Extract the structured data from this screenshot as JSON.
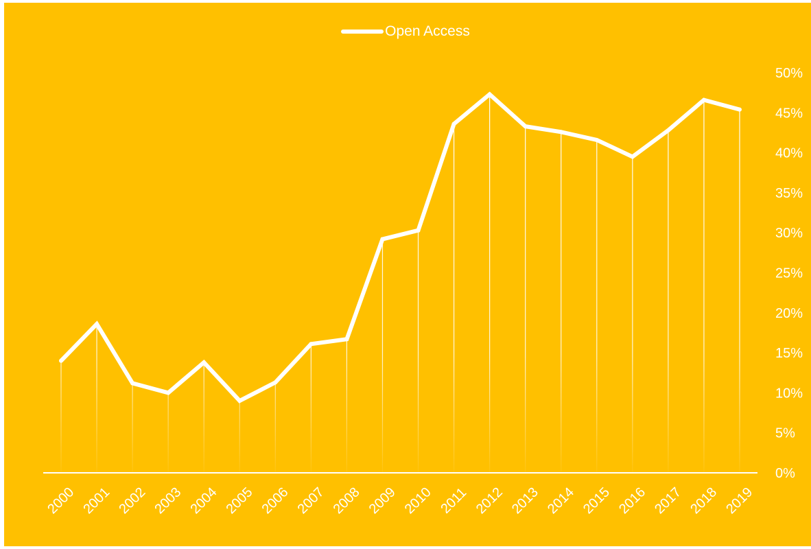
{
  "chart_data": {
    "type": "line",
    "title": "",
    "xlabel": "",
    "ylabel": "",
    "x": [
      "2000",
      "2001",
      "2002",
      "2003",
      "2004",
      "2005",
      "2006",
      "2007",
      "2008",
      "2009",
      "2010",
      "2011",
      "2012",
      "2013",
      "2014",
      "2015",
      "2016",
      "2017",
      "2018",
      "2019"
    ],
    "series": [
      {
        "name": "Open Access",
        "values": [
          14,
          18.6,
          11.2,
          10,
          13.8,
          9,
          11.3,
          16.1,
          16.7,
          29.2,
          30.3,
          43.6,
          47.3,
          43.3,
          42.6,
          41.6,
          39.5,
          42.8,
          46.6,
          45.4
        ]
      }
    ],
    "ylim": [
      0,
      50
    ],
    "y_ticks": [
      "0%",
      "5%",
      "10%",
      "15%",
      "20%",
      "25%",
      "30%",
      "35%",
      "40%",
      "45%",
      "50%"
    ],
    "y_axis_side": "right",
    "grid": false,
    "drop_lines": true,
    "legend_position": "top-center"
  },
  "colors": {
    "background": "#FFC000",
    "line": "#FFFFFF"
  }
}
